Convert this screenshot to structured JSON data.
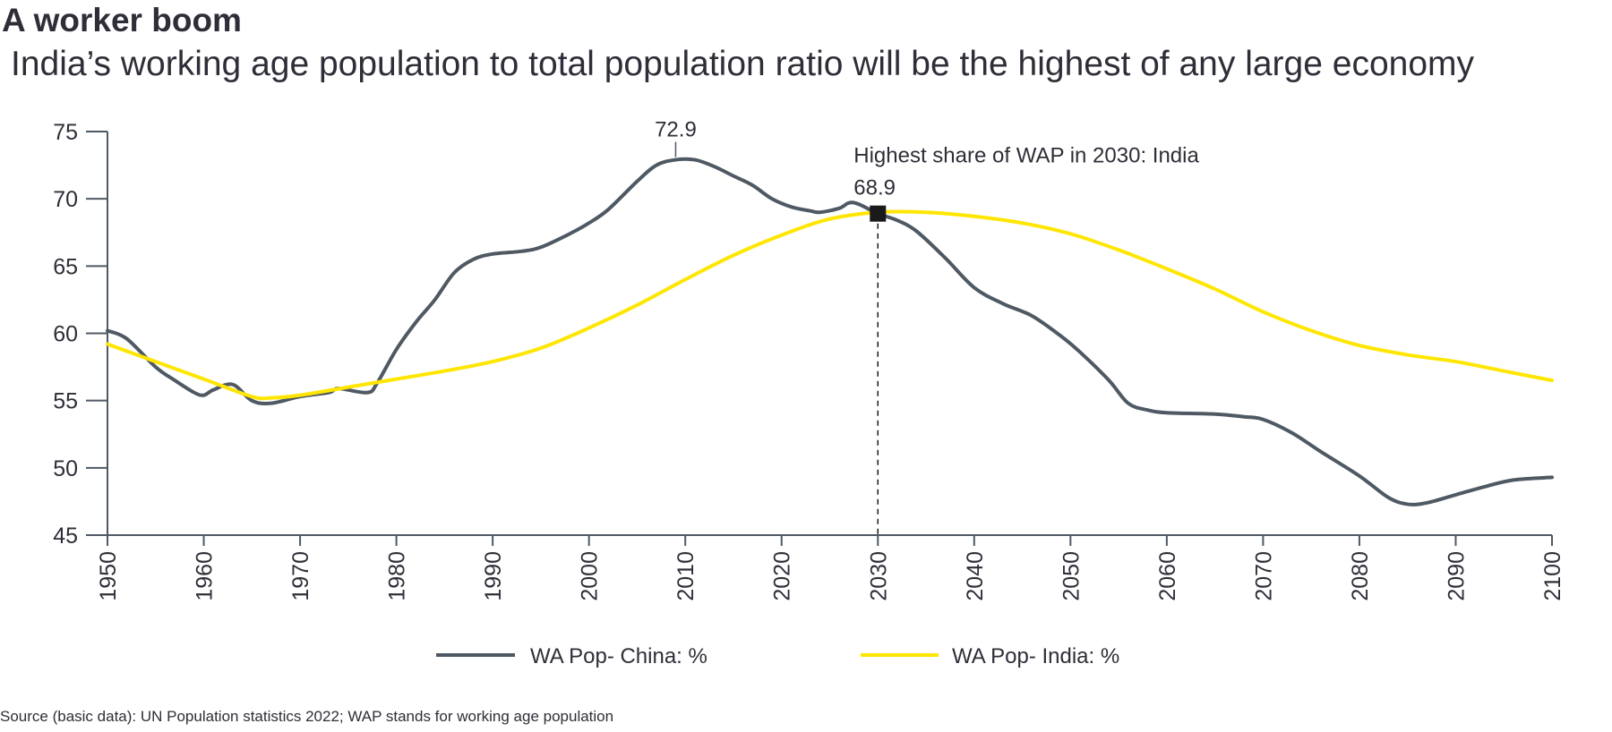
{
  "chart_data": {
    "type": "line",
    "title": "A worker boom",
    "subtitle": "India’s working age population to total population ratio will be the highest of any large economy",
    "xlim": [
      1950,
      2100
    ],
    "ylim": [
      45,
      75
    ],
    "x_ticks": [
      1950,
      1960,
      1970,
      1980,
      1990,
      2000,
      2010,
      2020,
      2030,
      2040,
      2050,
      2060,
      2070,
      2080,
      2090,
      2100
    ],
    "y_ticks": [
      45,
      50,
      55,
      60,
      65,
      70,
      75
    ],
    "grid": false,
    "legend_position": "bottom",
    "series": [
      {
        "name": "WA Pop- China: %",
        "color": "#4f5963",
        "x": [
          1950,
          1952,
          1955,
          1957,
          1959,
          1960,
          1961,
          1963,
          1965,
          1967,
          1970,
          1973,
          1974,
          1977,
          1978,
          1980,
          1982,
          1984,
          1986,
          1988,
          1990,
          1993,
          1995,
          1998,
          2000,
          2002,
          2005,
          2007,
          2009,
          2011,
          2013,
          2015,
          2017,
          2019,
          2021,
          2023,
          2024,
          2026,
          2027,
          2028,
          2030,
          2032,
          2034,
          2037,
          2040,
          2043,
          2046,
          2049,
          2051,
          2054,
          2056,
          2058,
          2060,
          2065,
          2068,
          2070,
          2073,
          2076,
          2080,
          2083,
          2085,
          2087,
          2090,
          2093,
          2096,
          2100
        ],
        "y": [
          60.2,
          59.6,
          57.5,
          56.5,
          55.6,
          55.4,
          55.8,
          56.2,
          55.0,
          54.8,
          55.3,
          55.6,
          55.9,
          55.6,
          56.3,
          58.8,
          60.8,
          62.5,
          64.5,
          65.5,
          65.9,
          66.1,
          66.4,
          67.4,
          68.2,
          69.2,
          71.3,
          72.5,
          72.9,
          72.9,
          72.4,
          71.7,
          71.0,
          70.0,
          69.4,
          69.1,
          69.0,
          69.3,
          69.7,
          69.6,
          68.9,
          68.4,
          67.6,
          65.6,
          63.4,
          62.2,
          61.3,
          59.8,
          58.6,
          56.5,
          54.8,
          54.3,
          54.1,
          54.0,
          53.8,
          53.6,
          52.6,
          51.2,
          49.4,
          47.8,
          47.3,
          47.4,
          48.0,
          48.6,
          49.1,
          49.3
        ]
      },
      {
        "name": "WA Pop- India: %",
        "color": "#ffe600",
        "x": [
          1950,
          1955,
          1960,
          1965,
          1967,
          1970,
          1975,
          1980,
          1985,
          1990,
          1995,
          2000,
          2005,
          2010,
          2015,
          2020,
          2025,
          2030,
          2035,
          2040,
          2045,
          2050,
          2055,
          2060,
          2065,
          2070,
          2075,
          2080,
          2085,
          2090,
          2095,
          2100
        ],
        "y": [
          59.2,
          57.9,
          56.6,
          55.3,
          55.2,
          55.4,
          56.0,
          56.6,
          57.2,
          57.9,
          58.9,
          60.4,
          62.1,
          64.0,
          65.8,
          67.3,
          68.5,
          69.0,
          69.0,
          68.7,
          68.2,
          67.4,
          66.2,
          64.8,
          63.3,
          61.6,
          60.2,
          59.1,
          58.4,
          57.9,
          57.2,
          56.5
        ]
      }
    ],
    "annotations": [
      {
        "text": "72.9",
        "x": 2009,
        "y": 72.9
      },
      {
        "text": "68.9",
        "x": 2030,
        "y": 68.9,
        "marker": "square",
        "marker_color": "#1a1a1a"
      },
      {
        "text": "Highest share of WAP in 2030: India",
        "x": 2030
      }
    ],
    "source": "Source (basic data): UN Population statistics 2022; WAP stands for working age population"
  }
}
